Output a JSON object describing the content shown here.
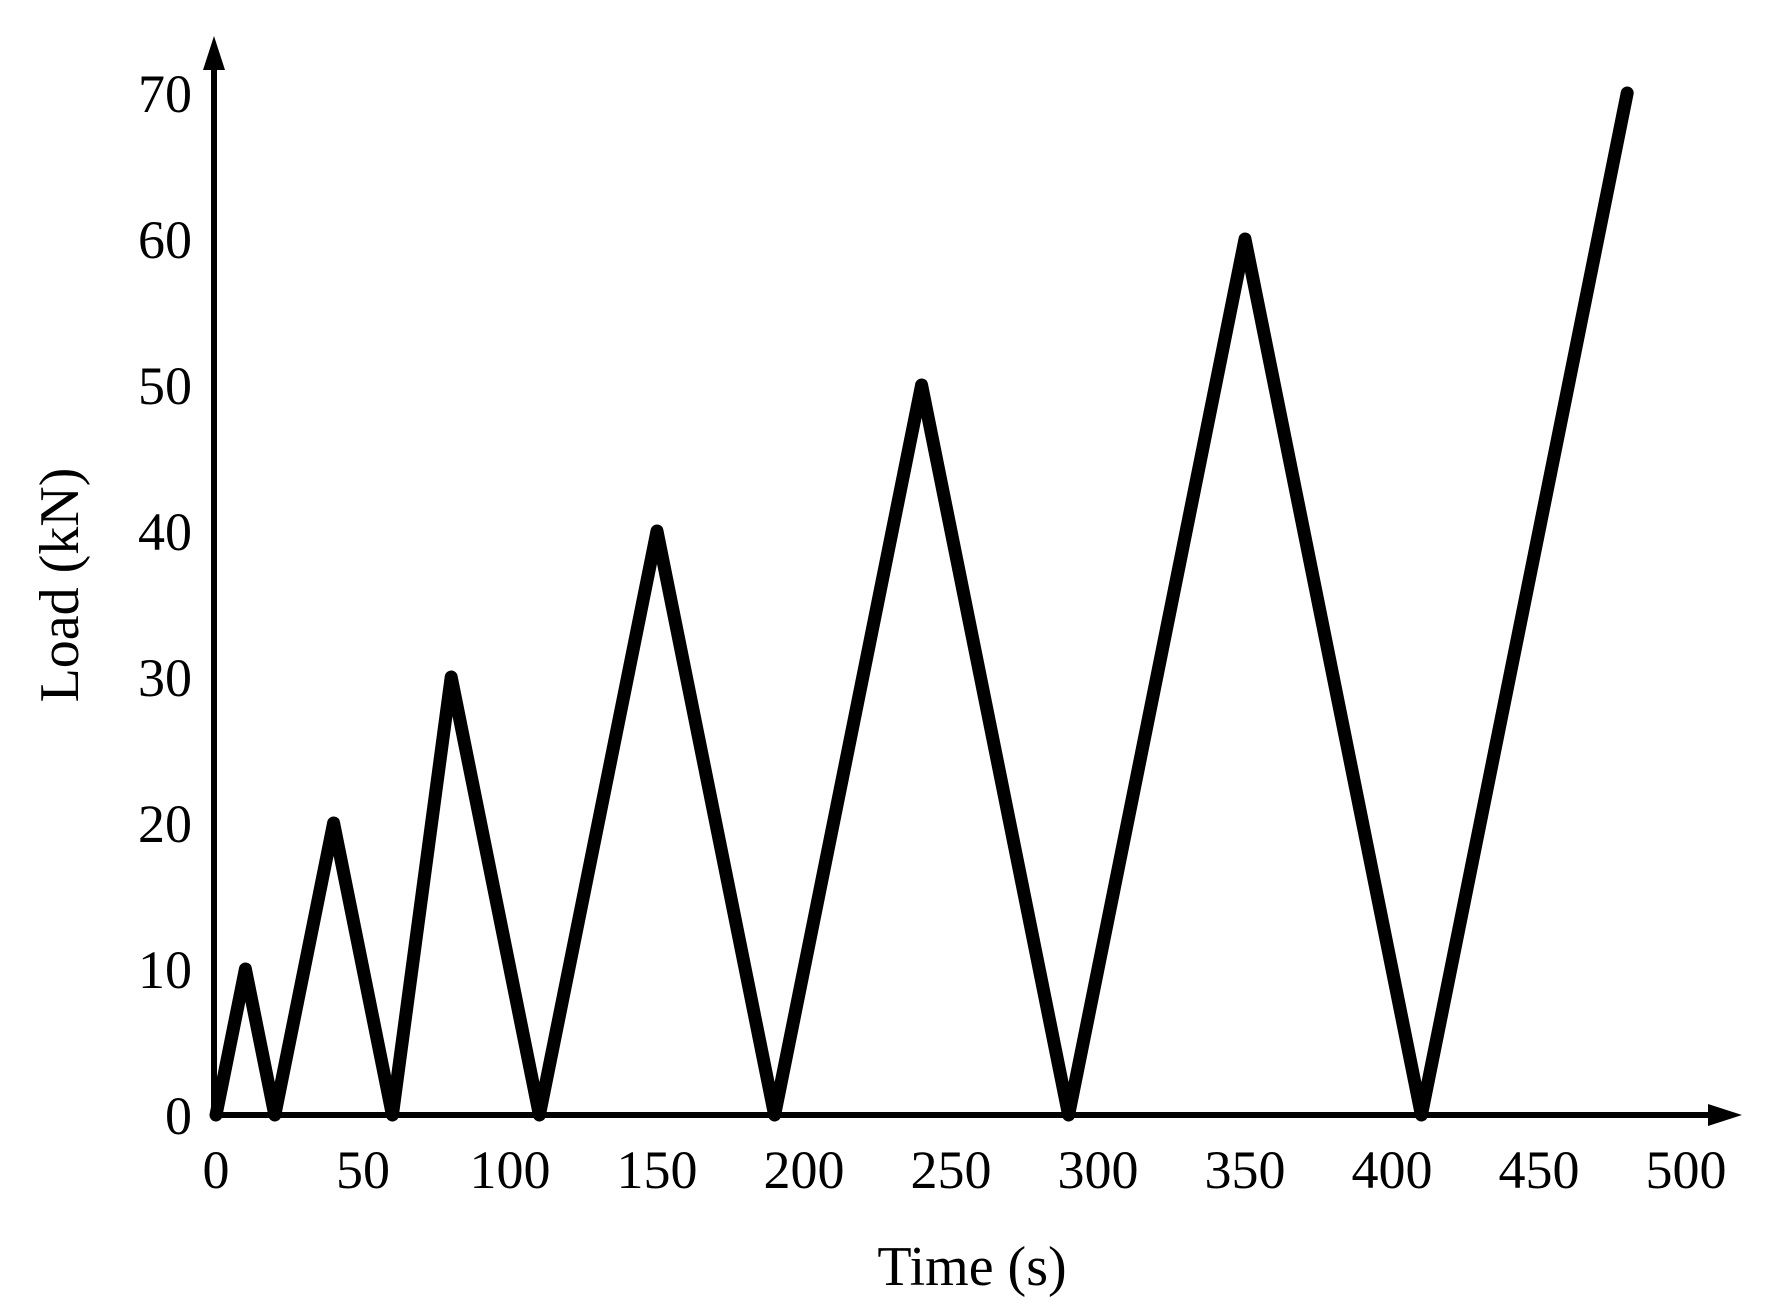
{
  "chart_data": {
    "type": "line",
    "title": "",
    "xlabel": "Time (s)",
    "ylabel": "Load (kN)",
    "xlim": [
      0,
      500
    ],
    "ylim": [
      0,
      70
    ],
    "x_ticks": [
      "0",
      "50",
      "100",
      "150",
      "200",
      "250",
      "300",
      "350",
      "400",
      "450",
      "500"
    ],
    "y_ticks": [
      "0",
      "10",
      "20",
      "30",
      "40",
      "50",
      "60",
      "70"
    ],
    "grid": false,
    "legend": "none",
    "line_color": "#000000",
    "series": [
      {
        "x": [
          0,
          10,
          20,
          40,
          60,
          80,
          110,
          150,
          190,
          240,
          290,
          350,
          410,
          480
        ],
        "values": [
          0,
          10,
          0,
          20,
          0,
          30,
          0,
          40,
          0,
          50,
          0,
          60,
          0,
          70
        ]
      }
    ]
  }
}
